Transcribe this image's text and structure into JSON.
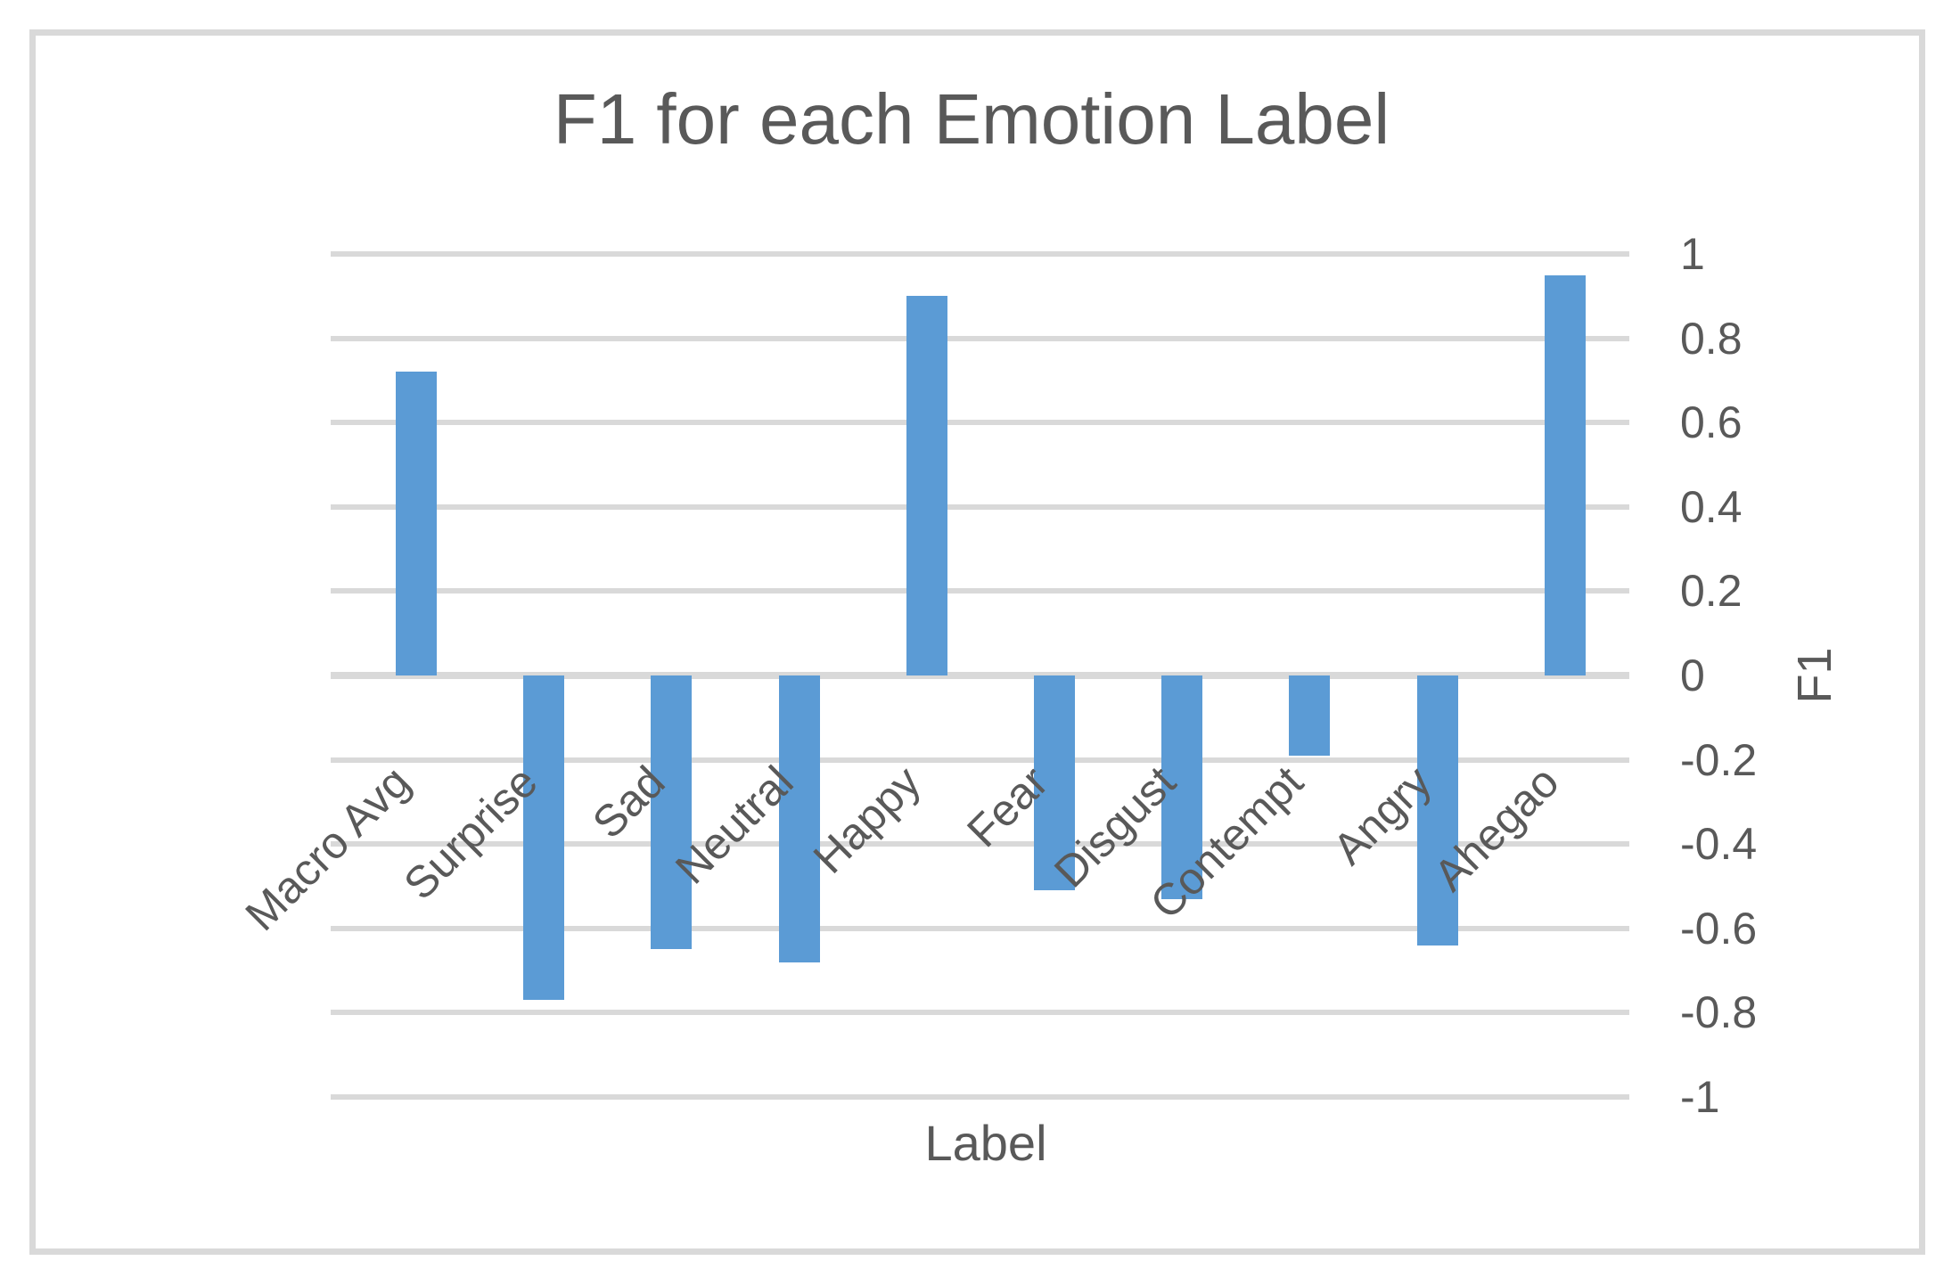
{
  "chart_data": {
    "type": "bar",
    "title": "F1 for each Emotion Label",
    "categories": [
      "Macro Avg",
      "Surprise",
      "Sad",
      "Neutral",
      "Happy",
      "Fear",
      "Disgust",
      "Contempt",
      "Angry",
      "Ahegao"
    ],
    "values": [
      0.72,
      -0.77,
      -0.65,
      -0.68,
      0.9,
      -0.51,
      -0.53,
      -0.19,
      -0.64,
      0.95
    ],
    "xlabel": "Label",
    "ylabel": "F1",
    "ylim": [
      -1,
      1
    ],
    "ytick_step": 0.2,
    "ytick_labels": [
      "1",
      "0.8",
      "0.6",
      "0.4",
      "0.2",
      "0",
      "-0.2",
      "-0.4",
      "-0.6",
      "-0.8",
      "-1"
    ],
    "yaxis_side": "right",
    "category_label_rotation_deg": 45,
    "grid": "horizontal",
    "legend": "none",
    "bar_color": "#5B9BD5",
    "gridline_color": "#D9D9D9",
    "text_color": "#595959",
    "frame_color": "#D9D9D9"
  }
}
